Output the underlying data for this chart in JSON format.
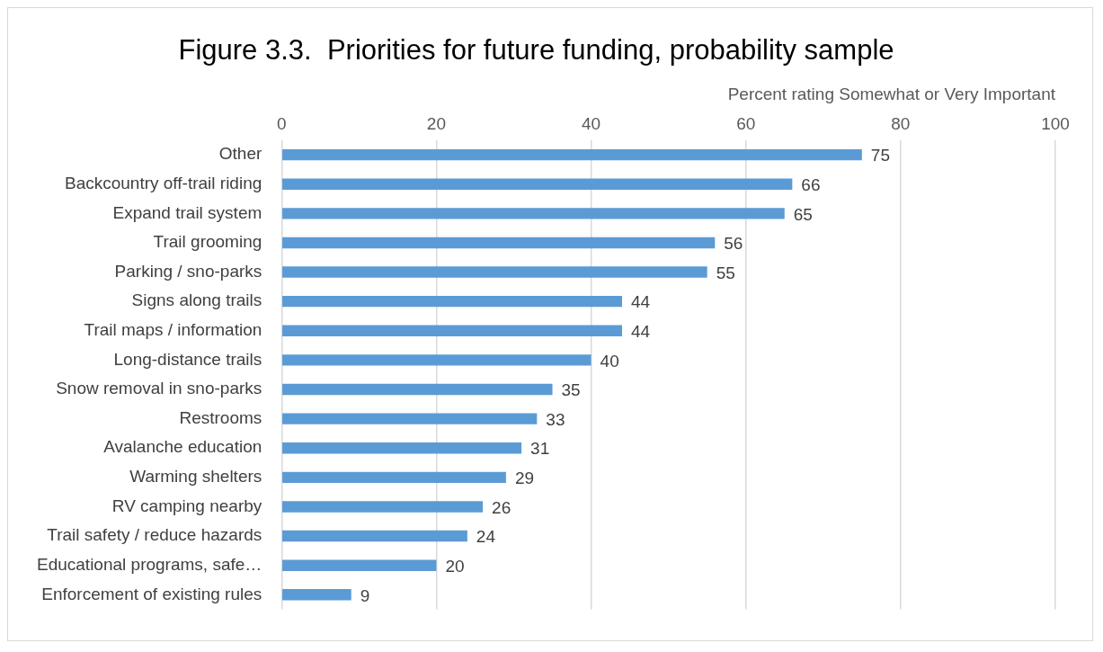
{
  "chart_data": {
    "type": "bar",
    "orientation": "horizontal",
    "title": "Figure 3.3.  Priorities for future funding, probability sample",
    "xlabel": "Percent rating Somewhat or Very Important",
    "categories": [
      "Other",
      "Backcountry off-trail riding",
      "Expand trail system",
      "Trail grooming",
      "Parking / sno-parks",
      "Signs along trails",
      "Trail maps / information",
      "Long-distance trails",
      "Snow removal in sno-parks",
      "Restrooms",
      "Avalanche education",
      "Warming shelters",
      "RV camping nearby",
      "Trail safety / reduce hazards",
      "Educational programs, safe…",
      "Enforcement of existing rules"
    ],
    "values": [
      75,
      66,
      65,
      56,
      55,
      44,
      44,
      40,
      35,
      33,
      31,
      29,
      26,
      24,
      20,
      9
    ],
    "color": "#5b9bd5",
    "xlim": [
      0,
      100
    ],
    "xticks": [
      0,
      20,
      40,
      60,
      80,
      100
    ],
    "grid": "x",
    "data_labels": true,
    "legend": false
  }
}
